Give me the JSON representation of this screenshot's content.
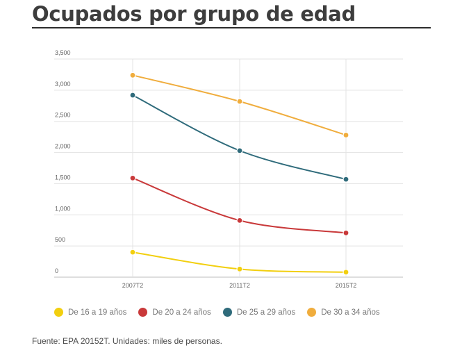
{
  "header": {
    "title": "Ocupados por grupo de edad"
  },
  "chart_data": {
    "type": "line",
    "categories": [
      "2007T2",
      "2011T2",
      "2015T2"
    ],
    "ylim": [
      0,
      3500
    ],
    "yticks": [
      {
        "value": 0,
        "label": "0"
      },
      {
        "value": 500,
        "label": "500"
      },
      {
        "value": 1000,
        "label": "1,000"
      },
      {
        "value": 1500,
        "label": "1,500"
      },
      {
        "value": 2000,
        "label": "2,000"
      },
      {
        "value": 2500,
        "label": "2,500"
      },
      {
        "value": 3000,
        "label": "3,000"
      },
      {
        "value": 3500,
        "label": "3,500"
      }
    ],
    "grid": true,
    "legend_position": "bottom",
    "series": [
      {
        "name": "De 16 a 19 años",
        "color": "#f2cf0f",
        "values": [
          400,
          130,
          80
        ]
      },
      {
        "name": "De 20 a 24 años",
        "color": "#c9393a",
        "values": [
          1590,
          910,
          710
        ]
      },
      {
        "name": "De 25 a 29 años",
        "color": "#2f6b7b",
        "values": [
          2920,
          2030,
          1570
        ]
      },
      {
        "name": "De 30 a 34 años",
        "color": "#f0ad3d",
        "values": [
          3240,
          2820,
          2280
        ]
      }
    ]
  },
  "footer": {
    "source": "Fuente: EPA 20152T. Unidades: miles de personas."
  }
}
